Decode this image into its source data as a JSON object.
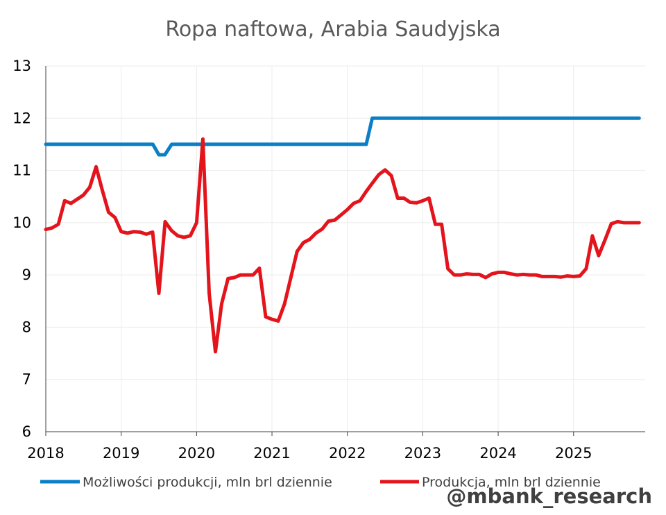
{
  "watermark": "@mbank_research",
  "chart_data": {
    "type": "line",
    "title": "Ropa naftowa, Arabia Saudyjska",
    "xlabel": "",
    "ylabel": "",
    "xlim": [
      2018.0,
      2025.95
    ],
    "ylim": [
      6,
      13
    ],
    "x_ticks": [
      "2018",
      "2019",
      "2020",
      "2021",
      "2022",
      "2023",
      "2024",
      "2025"
    ],
    "y_ticks": [
      "6",
      "7",
      "8",
      "9",
      "10",
      "11",
      "12",
      "13"
    ],
    "grid": true,
    "legend_position": "bottom",
    "series": [
      {
        "name": "Możliwości produkcji, mln brl dziennie",
        "color": "#0a7fc6",
        "x": [
          2018.0,
          2019.42,
          2019.5,
          2019.58,
          2019.67,
          2022.25,
          2022.33,
          2025.87
        ],
        "y": [
          11.5,
          11.5,
          11.3,
          11.3,
          11.5,
          11.5,
          12.0,
          12.0
        ]
      },
      {
        "name": "Produkcja, mln brl dziennie",
        "color": "#e3141c",
        "x": [
          2018.0,
          2018.083,
          2018.167,
          2018.25,
          2018.333,
          2018.417,
          2018.5,
          2018.583,
          2018.667,
          2018.75,
          2018.833,
          2018.917,
          2019.0,
          2019.083,
          2019.167,
          2019.25,
          2019.333,
          2019.417,
          2019.5,
          2019.583,
          2019.667,
          2019.75,
          2019.833,
          2019.917,
          2020.0,
          2020.083,
          2020.167,
          2020.25,
          2020.333,
          2020.417,
          2020.5,
          2020.583,
          2020.667,
          2020.75,
          2020.833,
          2020.917,
          2021.0,
          2021.083,
          2021.167,
          2021.25,
          2021.333,
          2021.417,
          2021.5,
          2021.583,
          2021.667,
          2021.75,
          2021.833,
          2021.917,
          2022.0,
          2022.083,
          2022.167,
          2022.25,
          2022.333,
          2022.417,
          2022.5,
          2022.583,
          2022.667,
          2022.75,
          2022.833,
          2022.917,
          2023.0,
          2023.083,
          2023.167,
          2023.25,
          2023.333,
          2023.417,
          2023.5,
          2023.583,
          2023.667,
          2023.75,
          2023.833,
          2023.917,
          2024.0,
          2024.083,
          2024.167,
          2024.25,
          2024.333,
          2024.417,
          2024.5,
          2024.583,
          2024.667,
          2024.75,
          2024.833,
          2024.917,
          2025.0,
          2025.083,
          2025.167,
          2025.25,
          2025.333,
          2025.417,
          2025.5,
          2025.583,
          2025.667,
          2025.75,
          2025.833,
          2025.87
        ],
        "y": [
          9.87,
          9.9,
          9.97,
          10.42,
          10.37,
          10.45,
          10.53,
          10.68,
          11.07,
          10.62,
          10.2,
          10.1,
          9.83,
          9.8,
          9.83,
          9.82,
          9.78,
          9.82,
          8.65,
          10.02,
          9.85,
          9.75,
          9.72,
          9.75,
          10.0,
          11.6,
          8.65,
          7.53,
          8.45,
          8.93,
          8.95,
          9.0,
          9.0,
          9.0,
          9.13,
          8.2,
          8.15,
          8.12,
          8.45,
          8.95,
          9.45,
          9.62,
          9.68,
          9.8,
          9.88,
          10.03,
          10.05,
          10.15,
          10.25,
          10.37,
          10.42,
          10.6,
          10.76,
          10.92,
          11.01,
          10.9,
          10.47,
          10.47,
          10.39,
          10.38,
          10.42,
          10.47,
          9.97,
          9.97,
          9.12,
          9.0,
          9.0,
          9.02,
          9.01,
          9.01,
          8.95,
          9.02,
          9.05,
          9.05,
          9.02,
          9.0,
          9.01,
          9.0,
          9.0,
          8.97,
          8.97,
          8.97,
          8.96,
          8.98,
          8.97,
          8.98,
          9.12,
          9.75,
          9.37,
          9.67,
          9.98,
          10.02,
          10.0,
          10.0,
          10.0,
          10.0
        ]
      }
    ]
  }
}
